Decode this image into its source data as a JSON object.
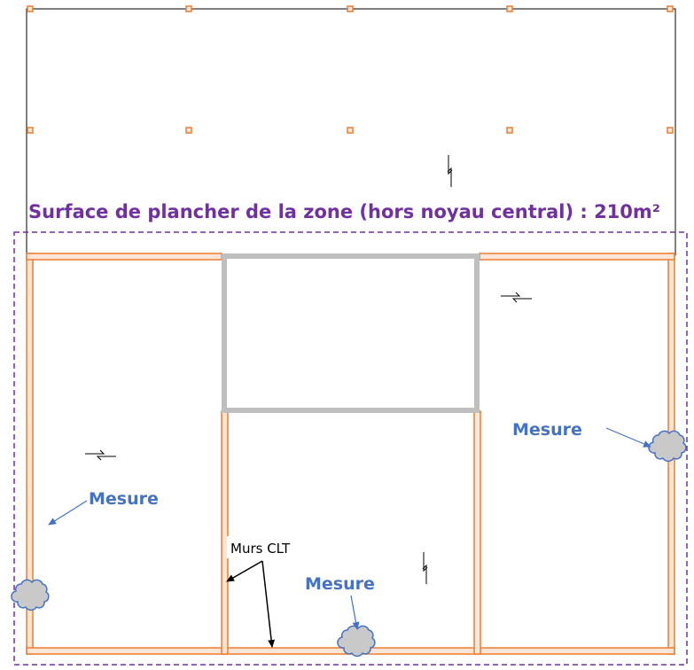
{
  "title": "Surface de plancher de la zone (hors noyau central) : 210m²",
  "labels": {
    "walls": "Murs CLT",
    "measure_left": "Mesure",
    "measure_center": "Mesure",
    "measure_right": "Mesure"
  },
  "colors": {
    "zone_outline": "#7030A0",
    "title": "#7030A0",
    "wall_stroke": "#ED7D31",
    "wall_fill": "#FBE5D6",
    "core": "#BFBFBF",
    "measure_text": "#4472C4",
    "measure_cloud_fill": "#C9C9C9",
    "measure_cloud_stroke": "#4472C4",
    "outline": "#000000"
  },
  "icons": {
    "span_direction": "double-half-arrow-icon",
    "measure_point": "cloud-icon",
    "post": "square-post-icon"
  }
}
